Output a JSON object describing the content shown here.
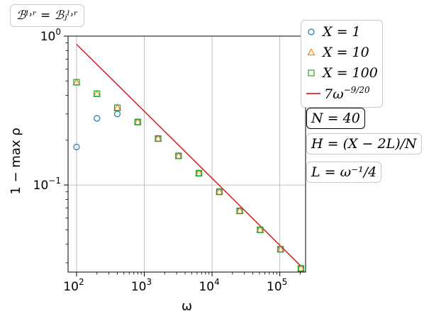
{
  "title_box": "ℬˡ˒ʳ = ℬⱼˡ˒ʳ",
  "colors": {
    "x1": "#1f77b4",
    "x10": "#ff7f0e",
    "x100": "#2ca02c",
    "fit": "#d62728",
    "grid": "#b0b0b0"
  },
  "annotations": [
    {
      "text": "N = 40",
      "style": "dark"
    },
    {
      "text": "H = (X − 2L)/N",
      "style": "light"
    },
    {
      "text": "L = ω⁻¹/4",
      "style": "light"
    }
  ],
  "chart_data": {
    "type": "scatter",
    "xlabel": "ω",
    "ylabel": "1 − max ρ",
    "xscale": "log",
    "yscale": "log",
    "xlim": [
      75,
      240000
    ],
    "ylim": [
      0.026,
      1.0
    ],
    "grid": true,
    "legend_position": "right-outside",
    "x_ticks": [
      {
        "base": "10",
        "exp": "2",
        "value": 100
      },
      {
        "base": "10",
        "exp": "3",
        "value": 1000
      },
      {
        "base": "10",
        "exp": "4",
        "value": 10000
      },
      {
        "base": "10",
        "exp": "5",
        "value": 100000
      }
    ],
    "y_ticks": [
      {
        "base": "10",
        "exp": "0",
        "value": 1.0
      },
      {
        "base": "10",
        "exp": "−1",
        "value": 0.1
      }
    ],
    "x": [
      100,
      200,
      400,
      800,
      1600,
      3200,
      6400,
      12800,
      25600,
      51200,
      102400,
      204800
    ],
    "series": [
      {
        "name": "X = 1",
        "marker": "circle",
        "color": "#1f77b4",
        "values": [
          0.18,
          0.28,
          0.3,
          0.265,
          0.205,
          0.157,
          0.12,
          0.09,
          0.067,
          0.05,
          0.037,
          0.0275
        ]
      },
      {
        "name": "X = 10",
        "marker": "triangle",
        "color": "#ff7f0e",
        "values": [
          0.49,
          0.41,
          0.33,
          0.265,
          0.205,
          0.157,
          0.12,
          0.09,
          0.067,
          0.05,
          0.037,
          0.0275
        ]
      },
      {
        "name": "X = 100",
        "marker": "square",
        "color": "#2ca02c",
        "values": [
          0.49,
          0.41,
          0.33,
          0.265,
          0.205,
          0.157,
          0.12,
          0.09,
          0.067,
          0.05,
          0.037,
          0.0275
        ]
      }
    ],
    "fit_line": {
      "name": "7ω⁻⁹ᐟ²⁰",
      "label_base": "7ω",
      "label_exp": "−9/20",
      "coef": 7,
      "exponent": -0.45,
      "color": "#d62728",
      "x_range": [
        100,
        204800
      ]
    }
  }
}
